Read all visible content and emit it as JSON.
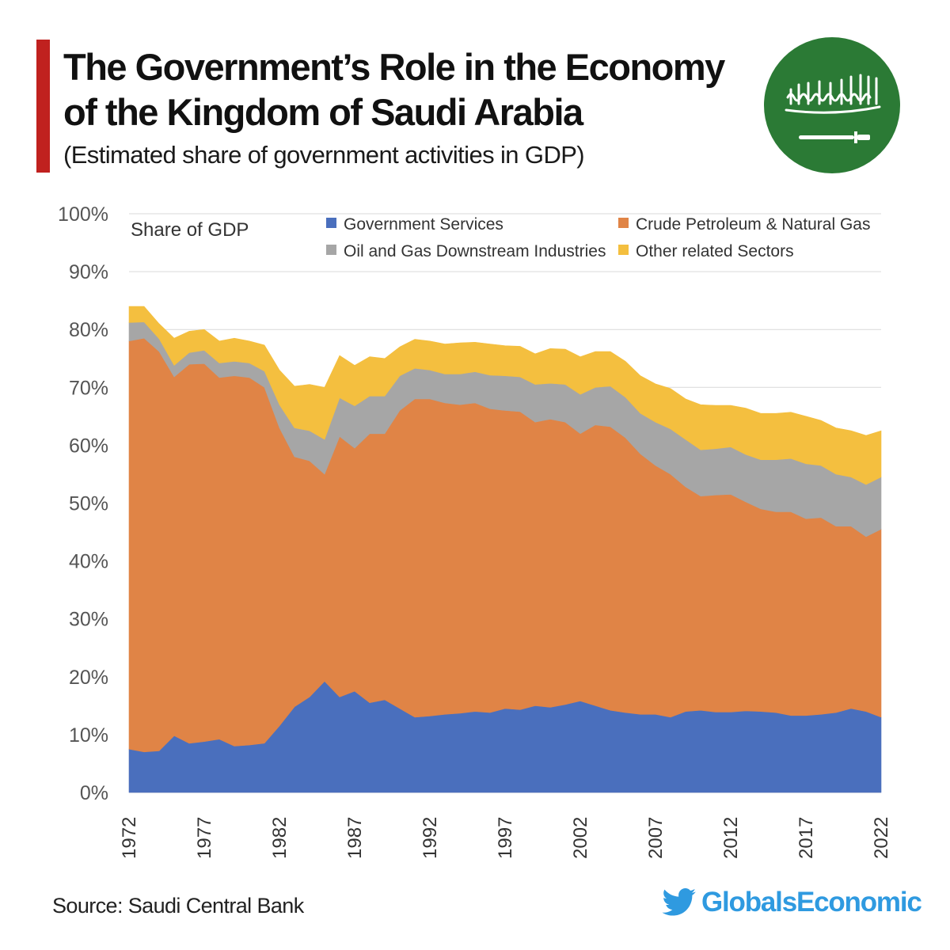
{
  "header": {
    "title_line1": "The Government’s Role in the Economy",
    "title_line2": "of the Kingdom of Saudi Arabia",
    "subtitle": "(Estimated share of government activities in GDP)",
    "flag_label": "Saudi Arabia flag"
  },
  "footer": {
    "source": "Source: Saudi Central Bank",
    "brand": "GlobalsEconomic",
    "brand_icon": "twitter-bird-icon"
  },
  "colors": {
    "accent": "#c0211f",
    "flag_green": "#2b7a35",
    "brand_blue": "#2f9ae0",
    "gridline": "#d9d9d9"
  },
  "chart_data": {
    "type": "area",
    "stacked": true,
    "title": "Share of GDP",
    "ylabel": "Share of GDP",
    "xlabel": "",
    "ylim": [
      0,
      100
    ],
    "yticks": [
      "0%",
      "10%",
      "20%",
      "30%",
      "40%",
      "50%",
      "60%",
      "70%",
      "80%",
      "90%",
      "100%"
    ],
    "xticks": [
      "1972",
      "1977",
      "1982",
      "1987",
      "1992",
      "1997",
      "2002",
      "2007",
      "2012",
      "2017",
      "2022"
    ],
    "grid": true,
    "legend_position": "top",
    "x": [
      1972,
      1973,
      1974,
      1975,
      1976,
      1977,
      1978,
      1979,
      1980,
      1981,
      1982,
      1983,
      1984,
      1985,
      1986,
      1987,
      1988,
      1989,
      1990,
      1991,
      1992,
      1993,
      1994,
      1995,
      1996,
      1997,
      1998,
      1999,
      2000,
      2001,
      2002,
      2003,
      2004,
      2005,
      2006,
      2007,
      2008,
      2009,
      2010,
      2011,
      2012,
      2013,
      2014,
      2015,
      2016,
      2017,
      2018,
      2019,
      2020,
      2021,
      2022
    ],
    "series": [
      {
        "name": "Government Services",
        "color": "#4a6fbd",
        "values": [
          7.5,
          7.0,
          7.2,
          9.8,
          8.5,
          8.8,
          9.2,
          8.0,
          8.2,
          8.5,
          11.5,
          14.8,
          16.5,
          19.2,
          16.5,
          17.5,
          15.5,
          16.0,
          14.5,
          13.0,
          13.2,
          13.5,
          13.7,
          14.0,
          13.8,
          14.5,
          14.3,
          15.0,
          14.7,
          15.2,
          15.8,
          15.0,
          14.2,
          13.8,
          13.5,
          13.5,
          13.0,
          14.0,
          14.2,
          13.9,
          13.9,
          14.1,
          14.0,
          13.8,
          13.3,
          13.3,
          13.5,
          13.8,
          14.5,
          14.0,
          13.0
        ]
      },
      {
        "name": "Crude Petroleum & Natural Gas",
        "color": "#e08446",
        "values": [
          70.5,
          71.5,
          69.0,
          62.0,
          65.5,
          65.3,
          62.5,
          64.0,
          63.5,
          61.5,
          51.5,
          43.2,
          40.8,
          35.8,
          45.0,
          42.0,
          46.5,
          46.0,
          51.5,
          55.0,
          54.8,
          53.8,
          53.3,
          53.3,
          52.5,
          51.5,
          51.5,
          49.0,
          49.8,
          48.8,
          46.2,
          48.5,
          49.0,
          47.5,
          45.0,
          43.0,
          42.0,
          38.8,
          37.0,
          37.5,
          37.6,
          36.1,
          35.0,
          34.7,
          35.2,
          34.0,
          34.0,
          32.2,
          31.5,
          30.2,
          32.5
        ]
      },
      {
        "name": "Oil and Gas Downstream Industries",
        "color": "#a6a6a6",
        "values": [
          3.2,
          2.8,
          2.2,
          2.0,
          2.0,
          2.3,
          2.5,
          2.5,
          2.5,
          2.8,
          4.0,
          5.0,
          5.2,
          6.0,
          6.7,
          7.3,
          6.5,
          6.5,
          6.0,
          5.3,
          5.0,
          5.0,
          5.3,
          5.4,
          5.8,
          6.0,
          6.0,
          6.5,
          6.2,
          6.5,
          6.8,
          6.5,
          7.0,
          7.0,
          7.0,
          7.5,
          7.8,
          8.2,
          8.0,
          8.0,
          8.2,
          8.2,
          8.5,
          9.0,
          9.2,
          9.5,
          9.0,
          9.0,
          8.5,
          9.0,
          9.0
        ]
      },
      {
        "name": "Other related Sectors",
        "color": "#f4bf3f",
        "values": [
          2.8,
          2.7,
          2.6,
          4.7,
          3.7,
          3.6,
          3.8,
          4.0,
          3.8,
          4.5,
          6.0,
          7.2,
          8.0,
          9.0,
          7.3,
          7.0,
          6.8,
          6.5,
          5.0,
          5.0,
          5.0,
          5.2,
          5.4,
          5.1,
          5.4,
          5.2,
          5.3,
          5.3,
          6.0,
          6.1,
          6.5,
          6.2,
          6.0,
          6.2,
          6.5,
          6.6,
          7.0,
          7.0,
          7.8,
          7.5,
          7.2,
          8.0,
          8.0,
          8.0,
          8.0,
          8.2,
          7.8,
          8.0,
          8.0,
          8.5,
          8.0
        ]
      }
    ]
  }
}
